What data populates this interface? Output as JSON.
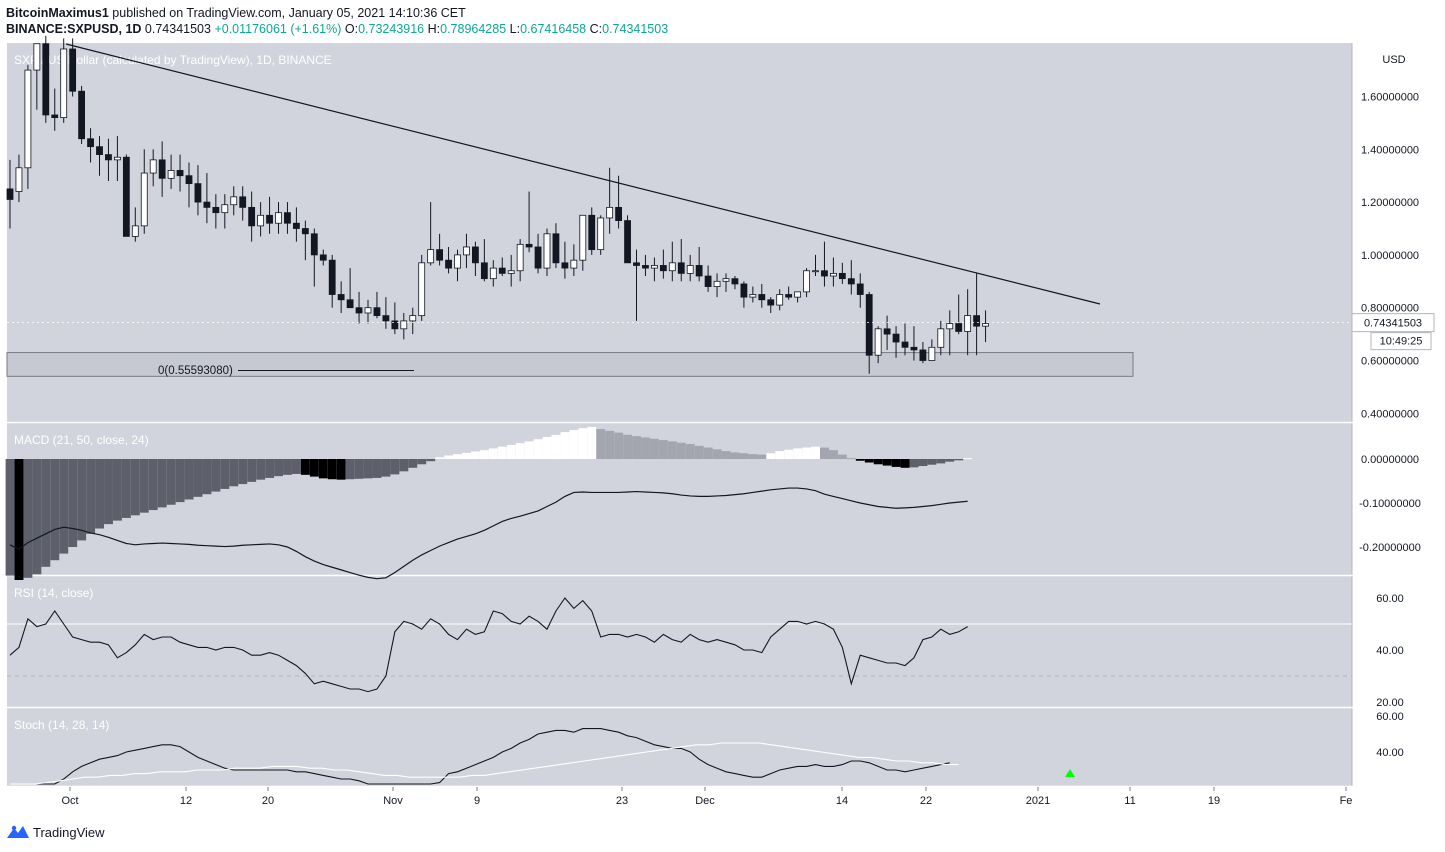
{
  "header": {
    "author": "BitcoinMaximus1",
    "published": "published on TradingView.com, January 05, 2021 14:10:36 CET",
    "symbol": "BINANCE:SXPUSD, 1D",
    "price": "0.74341503",
    "change": "+0.01176061 (+1.61%)",
    "o_label": "O:",
    "o": "0.73243916",
    "h_label": "H:",
    "h": "0.78964285",
    "l_label": "L:",
    "l": "0.67416458",
    "c_label": "C:",
    "c": "0.74341503"
  },
  "footer": {
    "brand": "TradingView",
    "logo_icon": "tradingview-logo-icon"
  },
  "colors": {
    "pane_bg": "#d1d4dc",
    "up_body": "#ffffff",
    "down_body": "#131722",
    "line": "#131722",
    "hist_neg_dark": "#5d606b",
    "hist_neg_black": "#000000",
    "hist_pos_white": "#ffffff",
    "hist_pos_grey": "#a3a6af",
    "signal_arrow": "#00ff00",
    "support_box": "#b2b5be"
  },
  "chart_data": {
    "type": "candlestick",
    "title": "SXP / US Dollar (calculated by TradingView), 1D, BINANCE",
    "currency_label": "USD",
    "price_axis_ticks": [
      "1.60000000",
      "1.40000000",
      "1.20000000",
      "1.00000000",
      "0.80000000",
      "0.60000000",
      "0.40000000"
    ],
    "last_price_label": "0.74341503",
    "countdown_label": "10:49:25",
    "x_tick_labels": [
      "Oct",
      "12",
      "20",
      "Nov",
      "9",
      "23",
      "Dec",
      "14",
      "22",
      "2021",
      "11",
      "19",
      "Fe"
    ],
    "trendline": {
      "start": [
        "2020-10-01",
        1.74
      ],
      "end": [
        "2021-01-08",
        0.81
      ]
    },
    "support_zone": {
      "low": 0.54,
      "high": 0.63,
      "label": "0(0.55593080)"
    },
    "candles_ohlc": [
      [
        1.25,
        1.36,
        1.1,
        1.21
      ],
      [
        1.24,
        1.38,
        1.2,
        1.33
      ],
      [
        1.33,
        1.72,
        1.25,
        1.7
      ],
      [
        1.7,
        1.8,
        1.55,
        1.8
      ],
      [
        1.8,
        1.83,
        1.5,
        1.53
      ],
      [
        1.53,
        1.63,
        1.47,
        1.52
      ],
      [
        1.52,
        1.82,
        1.5,
        1.78
      ],
      [
        1.78,
        1.82,
        1.6,
        1.62
      ],
      [
        1.62,
        1.64,
        1.42,
        1.44
      ],
      [
        1.44,
        1.48,
        1.35,
        1.41
      ],
      [
        1.41,
        1.45,
        1.3,
        1.38
      ],
      [
        1.38,
        1.44,
        1.28,
        1.36
      ],
      [
        1.36,
        1.45,
        1.28,
        1.37
      ],
      [
        1.37,
        1.38,
        1.1,
        1.07
      ],
      [
        1.07,
        1.18,
        1.05,
        1.11
      ],
      [
        1.11,
        1.4,
        1.08,
        1.31
      ],
      [
        1.31,
        1.4,
        1.26,
        1.36
      ],
      [
        1.36,
        1.43,
        1.22,
        1.29
      ],
      [
        1.29,
        1.38,
        1.25,
        1.32
      ],
      [
        1.32,
        1.38,
        1.24,
        1.3
      ],
      [
        1.3,
        1.35,
        1.18,
        1.27
      ],
      [
        1.27,
        1.34,
        1.15,
        1.2
      ],
      [
        1.2,
        1.31,
        1.12,
        1.18
      ],
      [
        1.18,
        1.23,
        1.1,
        1.16
      ],
      [
        1.16,
        1.23,
        1.1,
        1.19
      ],
      [
        1.19,
        1.26,
        1.15,
        1.22
      ],
      [
        1.22,
        1.26,
        1.13,
        1.18
      ],
      [
        1.18,
        1.24,
        1.05,
        1.11
      ],
      [
        1.11,
        1.2,
        1.07,
        1.15
      ],
      [
        1.15,
        1.22,
        1.08,
        1.12
      ],
      [
        1.12,
        1.2,
        1.08,
        1.16
      ],
      [
        1.16,
        1.2,
        1.08,
        1.12
      ],
      [
        1.12,
        1.18,
        1.05,
        1.1
      ],
      [
        1.1,
        1.13,
        0.98,
        1.08
      ],
      [
        1.08,
        1.1,
        0.88,
        1.0
      ],
      [
        1.0,
        1.02,
        0.96,
        0.98
      ],
      [
        0.98,
        1.0,
        0.8,
        0.85
      ],
      [
        0.85,
        0.9,
        0.78,
        0.83
      ],
      [
        0.83,
        0.95,
        0.8,
        0.8
      ],
      [
        0.8,
        0.86,
        0.74,
        0.78
      ],
      [
        0.78,
        0.83,
        0.74,
        0.8
      ],
      [
        0.8,
        0.86,
        0.76,
        0.77
      ],
      [
        0.77,
        0.84,
        0.72,
        0.75
      ],
      [
        0.75,
        0.82,
        0.7,
        0.72
      ],
      [
        0.72,
        0.78,
        0.68,
        0.75
      ],
      [
        0.75,
        0.8,
        0.7,
        0.77
      ],
      [
        0.77,
        1.0,
        0.75,
        0.97
      ],
      [
        0.97,
        1.2,
        0.96,
        1.02
      ],
      [
        1.02,
        1.08,
        0.96,
        0.98
      ],
      [
        0.98,
        1.03,
        0.93,
        0.95
      ],
      [
        0.95,
        1.02,
        0.9,
        1.0
      ],
      [
        1.0,
        1.08,
        0.95,
        1.03
      ],
      [
        1.03,
        1.05,
        0.92,
        0.97
      ],
      [
        0.97,
        1.06,
        0.9,
        0.91
      ],
      [
        0.91,
        0.98,
        0.88,
        0.95
      ],
      [
        0.95,
        0.99,
        0.92,
        0.93
      ],
      [
        0.93,
        1.0,
        0.88,
        0.94
      ],
      [
        0.94,
        1.06,
        0.9,
        1.04
      ],
      [
        1.04,
        1.24,
        1.01,
        1.03
      ],
      [
        1.03,
        1.08,
        0.93,
        0.95
      ],
      [
        0.95,
        1.1,
        0.92,
        1.08
      ],
      [
        1.08,
        1.12,
        0.95,
        0.97
      ],
      [
        0.97,
        1.05,
        0.91,
        0.95
      ],
      [
        0.95,
        1.04,
        0.92,
        0.98
      ],
      [
        0.98,
        1.1,
        0.94,
        1.15
      ],
      [
        1.15,
        1.18,
        1.0,
        1.02
      ],
      [
        1.02,
        1.15,
        1.0,
        1.14
      ],
      [
        1.14,
        1.33,
        1.08,
        1.18
      ],
      [
        1.18,
        1.3,
        1.1,
        1.13
      ],
      [
        1.13,
        1.15,
        0.98,
        0.97
      ],
      [
        0.97,
        1.02,
        0.75,
        0.96
      ],
      [
        0.96,
        1.0,
        0.92,
        0.95
      ],
      [
        0.95,
        0.99,
        0.9,
        0.96
      ],
      [
        0.96,
        1.02,
        0.91,
        0.94
      ],
      [
        0.94,
        1.05,
        0.9,
        0.97
      ],
      [
        0.97,
        1.06,
        0.9,
        0.93
      ],
      [
        0.93,
        1.0,
        0.9,
        0.96
      ],
      [
        0.96,
        1.03,
        0.9,
        0.92
      ],
      [
        0.92,
        0.96,
        0.86,
        0.88
      ],
      [
        0.88,
        0.93,
        0.84,
        0.9
      ],
      [
        0.9,
        0.93,
        0.86,
        0.91
      ],
      [
        0.91,
        0.92,
        0.87,
        0.89
      ],
      [
        0.89,
        0.9,
        0.8,
        0.84
      ],
      [
        0.84,
        0.88,
        0.82,
        0.85
      ],
      [
        0.85,
        0.89,
        0.8,
        0.83
      ],
      [
        0.83,
        0.84,
        0.78,
        0.81
      ],
      [
        0.81,
        0.87,
        0.79,
        0.85
      ],
      [
        0.85,
        0.88,
        0.83,
        0.84
      ],
      [
        0.84,
        0.86,
        0.82,
        0.86
      ],
      [
        0.86,
        0.95,
        0.84,
        0.94
      ],
      [
        0.94,
        1.0,
        0.92,
        0.94
      ],
      [
        0.94,
        1.05,
        0.88,
        0.92
      ],
      [
        0.92,
        0.99,
        0.88,
        0.93
      ],
      [
        0.93,
        0.97,
        0.89,
        0.91
      ],
      [
        0.91,
        0.98,
        0.85,
        0.89
      ],
      [
        0.89,
        0.93,
        0.8,
        0.85
      ],
      [
        0.85,
        0.86,
        0.55,
        0.62
      ],
      [
        0.62,
        0.73,
        0.59,
        0.72
      ],
      [
        0.72,
        0.77,
        0.64,
        0.7
      ],
      [
        0.7,
        0.73,
        0.61,
        0.67
      ],
      [
        0.67,
        0.74,
        0.62,
        0.65
      ],
      [
        0.65,
        0.73,
        0.6,
        0.64
      ],
      [
        0.64,
        0.67,
        0.59,
        0.6
      ],
      [
        0.6,
        0.68,
        0.6,
        0.65
      ],
      [
        0.65,
        0.75,
        0.62,
        0.72
      ],
      [
        0.72,
        0.79,
        0.62,
        0.74
      ],
      [
        0.74,
        0.85,
        0.7,
        0.71
      ],
      [
        0.71,
        0.87,
        0.62,
        0.77
      ],
      [
        0.77,
        0.93,
        0.62,
        0.73
      ],
      [
        0.73,
        0.79,
        0.67,
        0.74
      ]
    ],
    "macd": {
      "label": "MACD (21, 50, close, 24)",
      "ticks": [
        "0.00000000",
        "-0.10000000",
        "-0.20000000"
      ],
      "histogram": [
        -0.265,
        -0.275,
        -0.27,
        -0.262,
        -0.245,
        -0.23,
        -0.215,
        -0.2,
        -0.185,
        -0.17,
        -0.158,
        -0.148,
        -0.14,
        -0.134,
        -0.128,
        -0.122,
        -0.116,
        -0.11,
        -0.104,
        -0.098,
        -0.092,
        -0.086,
        -0.08,
        -0.074,
        -0.068,
        -0.062,
        -0.057,
        -0.052,
        -0.047,
        -0.043,
        -0.039,
        -0.036,
        -0.034,
        -0.036,
        -0.04,
        -0.044,
        -0.046,
        -0.047,
        -0.046,
        -0.045,
        -0.044,
        -0.043,
        -0.04,
        -0.035,
        -0.028,
        -0.02,
        -0.012,
        -0.005,
        0.004,
        0.008,
        0.011,
        0.014,
        0.017,
        0.02,
        0.024,
        0.028,
        0.032,
        0.036,
        0.04,
        0.045,
        0.05,
        0.055,
        0.061,
        0.066,
        0.07,
        0.073,
        0.068,
        0.064,
        0.06,
        0.055,
        0.052,
        0.049,
        0.046,
        0.043,
        0.04,
        0.037,
        0.034,
        0.03,
        0.026,
        0.022,
        0.018,
        0.015,
        0.013,
        0.011,
        0.01,
        0.013,
        0.018,
        0.021,
        0.024,
        0.026,
        0.028,
        0.026,
        0.02,
        0.01,
        0.002,
        -0.004,
        -0.008,
        -0.012,
        -0.015,
        -0.018,
        -0.02,
        -0.019,
        -0.016,
        -0.013,
        -0.01,
        -0.006,
        -0.003,
        0.002
      ],
      "signal_line": [
        -0.195,
        -0.205,
        -0.19,
        -0.18,
        -0.17,
        -0.16,
        -0.155,
        -0.158,
        -0.162,
        -0.168,
        -0.172,
        -0.178,
        -0.185,
        -0.192,
        -0.195,
        -0.193,
        -0.192,
        -0.191,
        -0.192,
        -0.193,
        -0.194,
        -0.196,
        -0.197,
        -0.198,
        -0.199,
        -0.198,
        -0.196,
        -0.195,
        -0.194,
        -0.193,
        -0.195,
        -0.2,
        -0.21,
        -0.222,
        -0.232,
        -0.24,
        -0.246,
        -0.252,
        -0.258,
        -0.264,
        -0.269,
        -0.272,
        -0.27,
        -0.258,
        -0.244,
        -0.23,
        -0.218,
        -0.208,
        -0.198,
        -0.19,
        -0.182,
        -0.176,
        -0.17,
        -0.162,
        -0.152,
        -0.142,
        -0.135,
        -0.13,
        -0.124,
        -0.118,
        -0.108,
        -0.098,
        -0.085,
        -0.076,
        -0.075,
        -0.076,
        -0.076,
        -0.076,
        -0.076,
        -0.075,
        -0.074,
        -0.075,
        -0.076,
        -0.077,
        -0.079,
        -0.082,
        -0.084,
        -0.085,
        -0.085,
        -0.084,
        -0.083,
        -0.081,
        -0.079,
        -0.076,
        -0.073,
        -0.07,
        -0.068,
        -0.066,
        -0.066,
        -0.068,
        -0.072,
        -0.08,
        -0.085,
        -0.09,
        -0.095,
        -0.1,
        -0.104,
        -0.108,
        -0.11,
        -0.112,
        -0.111,
        -0.11,
        -0.108,
        -0.106,
        -0.103,
        -0.1,
        -0.098,
        -0.096
      ]
    },
    "rsi": {
      "label": "RSI (14, close)",
      "ticks": [
        "60.00",
        "40.00",
        "20.00"
      ],
      "upper_band": 50,
      "lower_band": 30,
      "values": [
        38,
        41,
        52,
        49,
        50,
        55,
        50,
        45,
        44,
        43,
        43,
        42,
        37,
        39,
        42,
        46,
        44,
        45,
        45,
        43,
        42,
        41,
        41,
        40,
        41,
        41,
        40,
        38,
        38,
        39,
        38,
        36,
        34,
        31,
        27,
        28,
        27,
        26,
        25,
        25,
        24,
        25,
        30,
        47,
        51,
        50,
        48,
        52,
        50,
        46,
        44,
        48,
        46,
        47,
        55,
        54,
        51,
        50,
        53,
        51,
        48,
        55,
        60,
        56,
        59,
        55,
        45,
        46,
        46,
        45,
        46,
        45,
        43,
        46,
        44,
        43,
        46,
        44,
        43,
        44,
        43,
        42,
        40,
        40,
        39,
        45,
        48,
        51,
        51,
        50,
        51,
        50,
        48,
        41,
        27,
        38,
        37,
        36,
        35,
        35,
        34,
        37,
        44,
        45,
        48,
        46,
        47,
        49
      ]
    },
    "stoch": {
      "label": "Stoch (14, 28, 14)",
      "ticks": [
        "60.00",
        "40.00"
      ],
      "k_line": [
        15,
        18,
        21,
        25,
        29,
        32,
        34,
        36,
        37,
        38,
        40,
        41,
        42,
        43,
        44,
        44,
        43,
        40,
        37,
        35,
        33,
        31,
        30,
        30,
        30,
        30,
        30,
        30,
        30,
        29,
        29,
        28,
        27,
        26,
        25,
        25,
        24,
        22,
        20,
        17,
        14,
        12,
        11,
        14,
        18,
        23,
        28,
        29,
        31,
        33,
        35,
        37,
        40,
        42,
        45,
        47,
        50,
        51,
        52,
        52,
        51,
        53,
        53,
        53,
        52,
        51,
        49,
        48,
        46,
        44,
        43,
        42,
        42,
        40,
        36,
        33,
        31,
        29,
        28,
        27,
        26,
        26,
        28,
        30,
        31,
        32,
        32,
        33,
        32,
        32,
        33,
        35,
        35,
        34,
        32,
        30,
        30,
        29,
        30,
        31,
        32,
        33,
        34
      ],
      "d_line": [
        20,
        21,
        22,
        23,
        24,
        25,
        26,
        26,
        27,
        27,
        28,
        28,
        29,
        29,
        29,
        30,
        30,
        30,
        31,
        31,
        31,
        32,
        32,
        32,
        31,
        31,
        30,
        30,
        29,
        28,
        27,
        27,
        26,
        26,
        26,
        26,
        26,
        27,
        27,
        28,
        29,
        30,
        31,
        32,
        33,
        34,
        35,
        36,
        37,
        38,
        39,
        40,
        41,
        42,
        43,
        44,
        44,
        45,
        45,
        45,
        45,
        44,
        43,
        42,
        41,
        40,
        39,
        38,
        37,
        37,
        36,
        35,
        35,
        34,
        34,
        33,
        33
      ]
    }
  }
}
